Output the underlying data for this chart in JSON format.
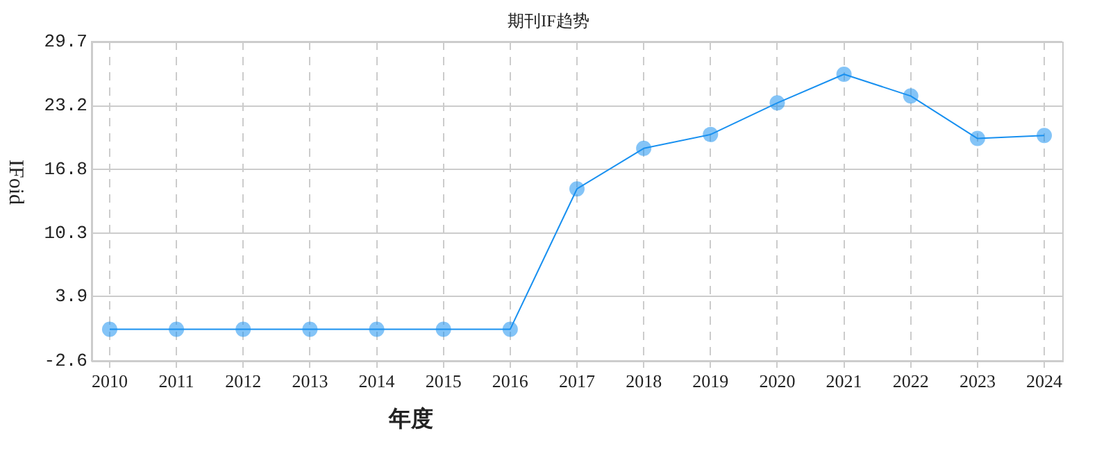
{
  "chart_data": {
    "type": "line",
    "title": "期刊IF趋势",
    "xlabel": "年度",
    "ylabel": "IFoid",
    "categories": [
      "2010",
      "2011",
      "2012",
      "2013",
      "2014",
      "2015",
      "2016",
      "2017",
      "2018",
      "2019",
      "2020",
      "2021",
      "2022",
      "2023",
      "2024"
    ],
    "series": [
      {
        "color": "#1890f0",
        "values": [
          0.6,
          0.6,
          0.6,
          0.6,
          0.6,
          0.6,
          0.6,
          14.8,
          18.9,
          20.3,
          23.5,
          26.4,
          24.2,
          19.9,
          20.2
        ]
      }
    ],
    "ylim": [
      -2.6,
      29.7
    ],
    "yticks": [
      -2.6,
      3.9,
      10.3,
      16.8,
      23.2,
      29.7
    ],
    "grid": true,
    "legend": false,
    "marker": "circle",
    "line_style": "solid"
  }
}
